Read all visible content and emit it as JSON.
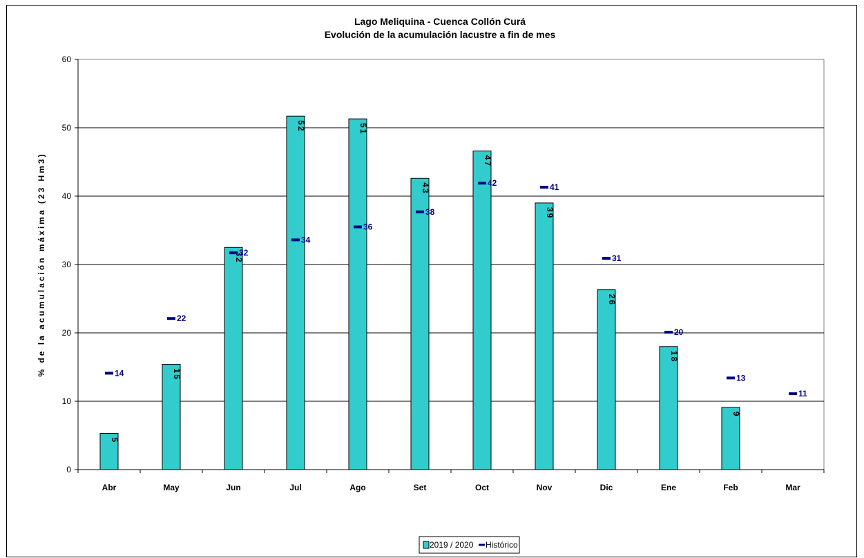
{
  "chart_data": {
    "type": "bar",
    "title": "Lago Meliquina - Cuenca Collón Curá",
    "subtitle": "Evolución de la acumulación lacustre a fin de mes",
    "xlabel": "",
    "ylabel": "% de la acumulación máxima (23 Hm3)",
    "ylim": [
      0,
      60
    ],
    "yticks": [
      0,
      10,
      20,
      30,
      40,
      50,
      60
    ],
    "grid": true,
    "legend_position": "bottom",
    "categories": [
      "Abr",
      "May",
      "Jun",
      "Jul",
      "Ago",
      "Set",
      "Oct",
      "Nov",
      "Dic",
      "Ene",
      "Feb",
      "Mar"
    ],
    "series": [
      {
        "name": "2019 / 2020",
        "kind": "bar",
        "color": "#33CCCC",
        "values": [
          5.3,
          15.4,
          32.5,
          51.7,
          51.3,
          42.6,
          46.6,
          39.0,
          26.3,
          18.0,
          9.1,
          null
        ],
        "labels": [
          "5",
          "15",
          "32",
          "52",
          "51",
          "43",
          "47",
          "39",
          "26",
          "18",
          "9",
          ""
        ]
      },
      {
        "name": "Histórico",
        "kind": "marker",
        "color": "#000080",
        "values": [
          14.1,
          22.1,
          31.7,
          33.6,
          35.5,
          37.7,
          41.9,
          41.3,
          30.9,
          20.1,
          13.4,
          11.1
        ],
        "labels": [
          "14",
          "22",
          "32",
          "34",
          "36",
          "38",
          "42",
          "41",
          "31",
          "20",
          "13",
          "11"
        ]
      }
    ]
  }
}
